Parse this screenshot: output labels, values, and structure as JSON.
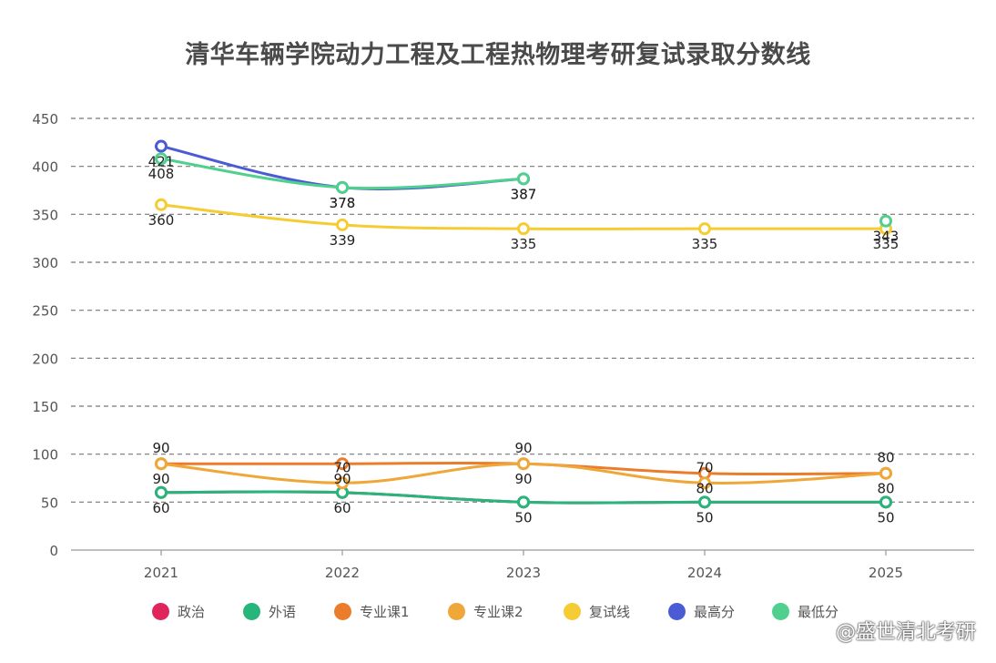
{
  "chart_data": {
    "type": "line",
    "title": "清华车辆学院动力工程及工程热物理考研复试录取分数线",
    "x": [
      "2021",
      "2022",
      "2023",
      "2024",
      "2025"
    ],
    "ylim": [
      0,
      450
    ],
    "yticks": [
      "0",
      "50",
      "100",
      "150",
      "200",
      "250",
      "300",
      "350",
      "400",
      "450"
    ],
    "grid": true,
    "legend_position": "bottom",
    "series": [
      {
        "name": "政治",
        "color": "#e0245e",
        "values": [
          60,
          60,
          50,
          50,
          50
        ],
        "show_labels": false,
        "label_pos": "below"
      },
      {
        "name": "外语",
        "color": "#26b57a",
        "values": [
          60,
          60,
          50,
          50,
          50
        ],
        "show_labels": true,
        "label_pos": "below"
      },
      {
        "name": "专业课1",
        "color": "#ea7c2c",
        "values": [
          90,
          90,
          90,
          80,
          80
        ],
        "show_labels": true,
        "label_pos": "below"
      },
      {
        "name": "专业课2",
        "color": "#f0a73a",
        "values": [
          90,
          70,
          90,
          70,
          80
        ],
        "show_labels": true,
        "label_pos": "above"
      },
      {
        "name": "复试线",
        "color": "#f5cc34",
        "values": [
          360,
          339,
          335,
          335,
          335
        ],
        "show_labels": true,
        "label_pos": "below"
      },
      {
        "name": "最高分",
        "color": "#4a5bd4",
        "values": [
          421,
          378,
          387,
          null,
          null
        ],
        "show_labels": true,
        "label_pos": "below"
      },
      {
        "name": "最低分",
        "color": "#4fd08f",
        "values": [
          408,
          378,
          387,
          null,
          343
        ],
        "show_labels": true,
        "label_pos": "below"
      }
    ]
  },
  "watermark": "@盛世清北考研"
}
